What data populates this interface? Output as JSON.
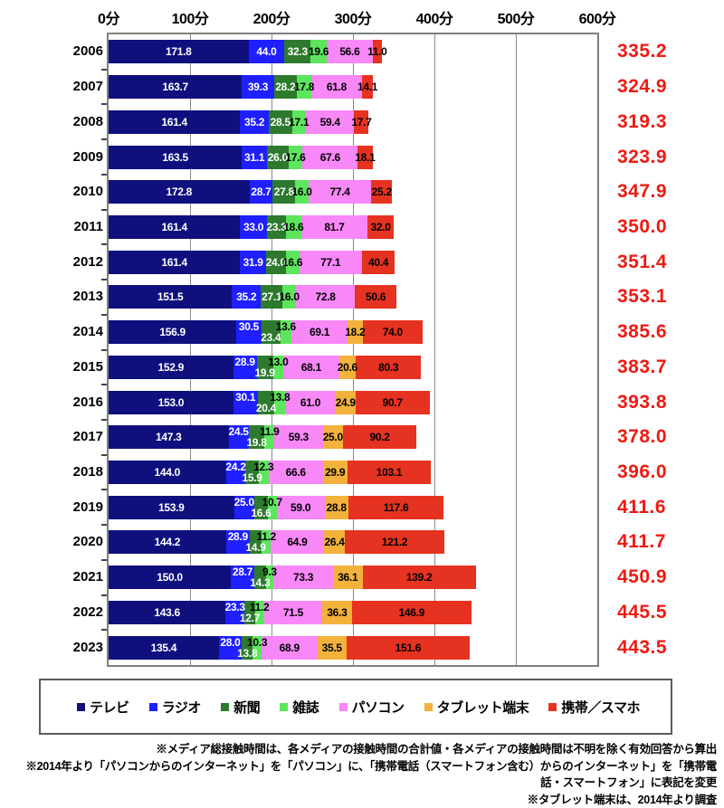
{
  "chart_data": {
    "type": "bar",
    "orientation": "horizontal",
    "stacked": true,
    "title": "",
    "x_axis": {
      "ticks": [
        "0分",
        "100分",
        "200分",
        "300分",
        "400分",
        "500分",
        "600分"
      ],
      "min": 0,
      "max": 600,
      "unit": "分",
      "grid": true
    },
    "series": [
      "テレビ",
      "ラジオ",
      "新聞",
      "雑誌",
      "パソコン",
      "タブレット端末",
      "携帯／スマホ"
    ],
    "colors": [
      "#0f107e",
      "#1f1fff",
      "#2d7a2e",
      "#5ce65c",
      "#f887f8",
      "#f2b23c",
      "#e63220"
    ],
    "label_colors": [
      "#ffffff",
      "#ffffff",
      "#ffffff",
      "#000000",
      "#000000",
      "#000000",
      "#000000"
    ],
    "total_color": "#ee1a12",
    "stagger_from_year": 2014,
    "rows": [
      {
        "year": "2006",
        "values": [
          171.8,
          44.0,
          32.3,
          19.6,
          56.6,
          null,
          11.0
        ],
        "total": "335.2"
      },
      {
        "year": "2007",
        "values": [
          163.7,
          39.3,
          28.2,
          17.8,
          61.8,
          null,
          14.1
        ],
        "total": "324.9"
      },
      {
        "year": "2008",
        "values": [
          161.4,
          35.2,
          28.5,
          17.1,
          59.4,
          null,
          17.7
        ],
        "total": "319.3"
      },
      {
        "year": "2009",
        "values": [
          163.5,
          31.1,
          26.0,
          17.6,
          67.6,
          null,
          18.1
        ],
        "total": "323.9"
      },
      {
        "year": "2010",
        "values": [
          172.8,
          28.7,
          27.8,
          16.0,
          77.4,
          null,
          25.2
        ],
        "total": "347.9"
      },
      {
        "year": "2011",
        "values": [
          161.4,
          33.0,
          23.3,
          18.6,
          81.7,
          null,
          32.0
        ],
        "total": "350.0"
      },
      {
        "year": "2012",
        "values": [
          161.4,
          31.9,
          24.0,
          16.6,
          77.1,
          null,
          40.4
        ],
        "total": "351.4"
      },
      {
        "year": "2013",
        "values": [
          151.5,
          35.2,
          27.1,
          16.0,
          72.8,
          null,
          50.6
        ],
        "total": "353.1"
      },
      {
        "year": "2014",
        "values": [
          156.9,
          30.5,
          23.4,
          13.6,
          69.1,
          18.2,
          74.0
        ],
        "total": "385.6"
      },
      {
        "year": "2015",
        "values": [
          152.9,
          28.9,
          19.9,
          13.0,
          68.1,
          20.6,
          80.3
        ],
        "total": "383.7"
      },
      {
        "year": "2016",
        "values": [
          153.0,
          30.1,
          20.4,
          13.8,
          61.0,
          24.9,
          90.7
        ],
        "total": "393.8"
      },
      {
        "year": "2017",
        "values": [
          147.3,
          24.5,
          19.8,
          11.9,
          59.3,
          25.0,
          90.2
        ],
        "total": "378.0"
      },
      {
        "year": "2018",
        "values": [
          144.0,
          24.2,
          15.9,
          12.3,
          66.6,
          29.9,
          103.1
        ],
        "total": "396.0"
      },
      {
        "year": "2019",
        "values": [
          153.9,
          25.0,
          16.6,
          10.7,
          59.0,
          28.8,
          117.6
        ],
        "total": "411.6"
      },
      {
        "year": "2020",
        "values": [
          144.2,
          28.9,
          14.9,
          11.2,
          64.9,
          26.4,
          121.2
        ],
        "total": "411.7"
      },
      {
        "year": "2021",
        "values": [
          150.0,
          28.7,
          14.3,
          9.3,
          73.3,
          36.1,
          139.2
        ],
        "total": "450.9"
      },
      {
        "year": "2022",
        "values": [
          143.6,
          23.3,
          12.7,
          11.2,
          71.5,
          36.3,
          146.9
        ],
        "total": "445.5"
      },
      {
        "year": "2023",
        "values": [
          135.4,
          28.0,
          13.8,
          10.3,
          68.9,
          35.5,
          151.6
        ],
        "total": "443.5"
      }
    ]
  },
  "legend": {
    "items": [
      {
        "label": "テレビ",
        "color": "#0f107e"
      },
      {
        "label": "ラジオ",
        "color": "#1f1fff"
      },
      {
        "label": "新聞",
        "color": "#2d7a2e"
      },
      {
        "label": "雑誌",
        "color": "#5ce65c"
      },
      {
        "label": "パソコン",
        "color": "#f887f8"
      },
      {
        "label": "タブレット端末",
        "color": "#f2b23c"
      },
      {
        "label": "携帯／スマホ",
        "color": "#e63220"
      }
    ]
  },
  "footnotes": [
    "※メディア総接触時間は、各メディアの接触時間の合計値・各メディアの接触時間は不明を除く有効回答から算出",
    "※2014年より「パソコンからのインターネット」を「パソコン」に、「携帯電話（スマートフォン含む）からのインターネット」を「携帯電話・スマートフォン」に表記を変更",
    "※タブレット端末は、2014年より調査"
  ]
}
